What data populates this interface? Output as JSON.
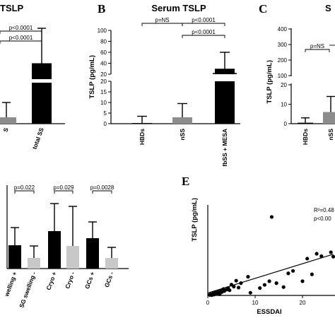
{
  "chart_data": [
    {
      "panel": "A",
      "type": "bar",
      "title": "TSLP",
      "categories": [
        "S",
        "total SS"
      ],
      "values": [
        3,
        45
      ],
      "errors": [
        10,
        100
      ],
      "colors": [
        "#8c8c8c",
        "#000000"
      ],
      "significance": [
        "p<0.0001",
        "p<0.0001"
      ]
    },
    {
      "panel": "B",
      "type": "bar",
      "letter": "B",
      "title": "Serum TSLP",
      "ylabel": "TSLP (pg/mL)",
      "categories": [
        "HBDs",
        "nSS",
        "fbSS + MESA"
      ],
      "values": [
        0.3,
        3,
        30
      ],
      "errors": [
        3.5,
        9.5,
        60
      ],
      "colors": [
        "#000000",
        "#8c8c8c",
        "#000000"
      ],
      "y_broken": true,
      "lower_ticks": [
        0,
        5,
        10,
        15,
        20
      ],
      "upper_ticks": [
        20,
        40,
        60,
        80,
        100
      ],
      "significance": [
        "p=NS",
        "p<0.0001",
        "p<0.0001"
      ]
    },
    {
      "panel": "C",
      "type": "bar",
      "letter": "C",
      "title": "S",
      "ylabel": "TSLP (pg/mL)",
      "categories": [
        "HBDs",
        "nSS"
      ],
      "values": [
        0.5,
        6
      ],
      "errors": [
        3,
        14
      ],
      "colors": [
        "#000000",
        "#8c8c8c"
      ],
      "y_broken": true,
      "lower_ticks": [
        0,
        10,
        20
      ],
      "upper_ticks": [
        100,
        200,
        300,
        400
      ],
      "significance": [
        "p=NS"
      ]
    },
    {
      "panel": "D",
      "type": "bar",
      "categories": [
        "SG swelling +",
        "SG swelling -",
        "Cryo +",
        "Cryo -",
        "GCs +",
        "GCs -"
      ],
      "category_labels": [
        "welling +",
        "SG swelling -",
        "Cryo +",
        "Cryo -",
        "GCs +",
        "GCs -"
      ],
      "values": [
        33,
        15,
        53,
        32,
        43,
        15
      ],
      "errors": [
        58,
        32,
        92,
        88,
        66,
        30
      ],
      "colors": [
        "#000000",
        "#c8c8c8",
        "#000000",
        "#c8c8c8",
        "#000000",
        "#c8c8c8"
      ],
      "significance": [
        "p=0.022",
        "p=0.029",
        "p=0.0028"
      ]
    },
    {
      "panel": "E",
      "type": "scatter",
      "letter": "E",
      "xlabel": "ESSDAI",
      "ylabel": "TSLP (pg/mL)",
      "xticks": [
        0,
        10,
        20
      ],
      "annotations": [
        "R²=0.48",
        "p<0.00"
      ],
      "points": [
        [
          0.4,
          2
        ],
        [
          0.6,
          4
        ],
        [
          0.8,
          1
        ],
        [
          1,
          6
        ],
        [
          1.2,
          9
        ],
        [
          1.3,
          3
        ],
        [
          1.6,
          12
        ],
        [
          2,
          7
        ],
        [
          2.2,
          15
        ],
        [
          2.5,
          5
        ],
        [
          2.8,
          20
        ],
        [
          3,
          14
        ],
        [
          3.3,
          26
        ],
        [
          3.5,
          18
        ],
        [
          4,
          24
        ],
        [
          4.3,
          30
        ],
        [
          4.6,
          21
        ],
        [
          5,
          44
        ],
        [
          5.5,
          36
        ],
        [
          6,
          60
        ],
        [
          6.5,
          32
        ],
        [
          7,
          50
        ],
        [
          8.5,
          76
        ],
        [
          9,
          11
        ],
        [
          11,
          30
        ],
        [
          12,
          43
        ],
        [
          13,
          58
        ],
        [
          13.5,
          320
        ],
        [
          14.5,
          50
        ],
        [
          16,
          34
        ],
        [
          17,
          90
        ],
        [
          18,
          100
        ],
        [
          20,
          58
        ],
        [
          21,
          150
        ],
        [
          22,
          86
        ],
        [
          23,
          170
        ],
        [
          24,
          160
        ],
        [
          26,
          176
        ],
        [
          26.5,
          158
        ]
      ],
      "fit_line": [
        [
          0,
          10
        ],
        [
          26.5,
          168
        ]
      ]
    }
  ]
}
